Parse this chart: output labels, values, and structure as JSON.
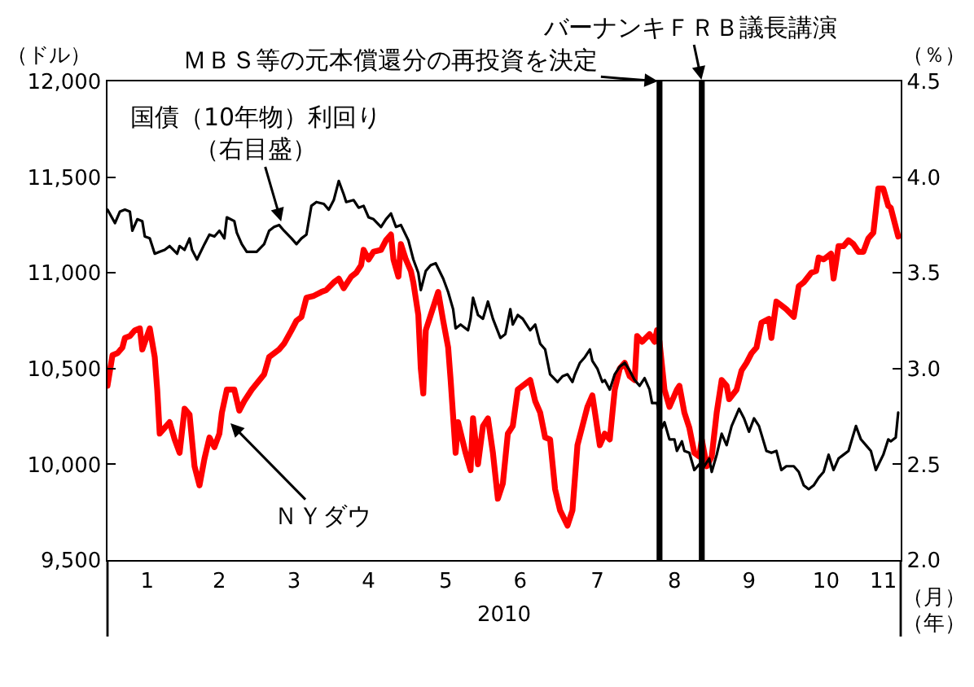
{
  "chart_data": {
    "type": "line",
    "xlabel": "2010",
    "ylabel": "（ドル）",
    "y2label": "（％）",
    "xlim": [
      "2009-12-31",
      "2010-11-15"
    ],
    "xticks": [
      {
        "value": "2010-01-16",
        "label": "1"
      },
      {
        "value": "2010-02-14",
        "label": "2"
      },
      {
        "value": "2010-03-16",
        "label": "3"
      },
      {
        "value": "2010-04-15",
        "label": "4"
      },
      {
        "value": "2010-05-16",
        "label": "5"
      },
      {
        "value": "2010-06-15",
        "label": "6"
      },
      {
        "value": "2010-07-16",
        "label": "7"
      },
      {
        "value": "2010-08-16",
        "label": "8"
      },
      {
        "value": "2010-09-15",
        "label": "9"
      },
      {
        "value": "2010-10-16",
        "label": "10"
      },
      {
        "value": "2010-11-08",
        "label": "11"
      }
    ],
    "ylim": [
      9500,
      12000
    ],
    "yticks": [
      {
        "value": 9500,
        "label": "9,500"
      },
      {
        "value": 10000,
        "label": "10,000"
      },
      {
        "value": 10500,
        "label": "10,500"
      },
      {
        "value": 11000,
        "label": "11,000"
      },
      {
        "value": 11500,
        "label": "11,500"
      },
      {
        "value": 12000,
        "label": "12,000"
      }
    ],
    "y2lim": [
      2.0,
      4.5
    ],
    "y2ticks": [
      {
        "value": 2.0,
        "label": "2.0"
      },
      {
        "value": 2.5,
        "label": "2.5"
      },
      {
        "value": 3.0,
        "label": "3.0"
      },
      {
        "value": 3.5,
        "label": "3.5"
      },
      {
        "value": 4.0,
        "label": "4.0"
      },
      {
        "value": 4.5,
        "label": "4.5"
      }
    ],
    "series": [
      {
        "color": "#ff0000",
        "x": [
          "2009-12-31",
          "2010-01-02",
          "2010-01-04",
          "2010-01-06",
          "2010-01-07",
          "2010-01-09",
          "2010-01-11",
          "2010-01-13",
          "2010-01-14",
          "2010-01-17",
          "2010-01-19",
          "2010-01-20",
          "2010-01-21",
          "2010-01-23",
          "2010-01-25",
          "2010-01-27",
          "2010-01-29",
          "2010-01-31",
          "2010-02-02",
          "2010-02-04",
          "2010-02-06",
          "2010-02-08",
          "2010-02-10",
          "2010-02-12",
          "2010-02-14",
          "2010-02-15",
          "2010-02-17",
          "2010-02-20",
          "2010-02-22",
          "2010-02-24",
          "2010-02-27",
          "2010-03-04",
          "2010-03-06",
          "2010-03-10",
          "2010-03-12",
          "2010-03-15",
          "2010-03-17",
          "2010-03-19",
          "2010-03-21",
          "2010-03-24",
          "2010-03-27",
          "2010-03-29",
          "2010-04-01",
          "2010-04-03",
          "2010-04-05",
          "2010-04-08",
          "2010-04-10",
          "2010-04-12",
          "2010-04-13",
          "2010-04-15",
          "2010-04-17",
          "2010-04-20",
          "2010-04-22",
          "2010-04-24",
          "2010-04-25",
          "2010-04-27",
          "2010-04-28",
          "2010-04-30",
          "2010-05-02",
          "2010-05-03",
          "2010-05-05",
          "2010-05-06",
          "2010-05-07",
          "2010-05-08",
          "2010-05-10",
          "2010-05-13",
          "2010-05-15",
          "2010-05-17",
          "2010-05-18",
          "2010-05-20",
          "2010-05-21",
          "2010-05-24",
          "2010-05-26",
          "2010-05-27",
          "2010-05-29",
          "2010-05-31",
          "2010-06-02",
          "2010-06-04",
          "2010-06-06",
          "2010-06-08",
          "2010-06-10",
          "2010-06-12",
          "2010-06-14",
          "2010-06-16",
          "2010-06-19",
          "2010-06-21",
          "2010-06-23",
          "2010-06-25",
          "2010-06-27",
          "2010-06-29",
          "2010-07-01",
          "2010-07-04",
          "2010-07-06",
          "2010-07-08",
          "2010-07-10",
          "2010-07-12",
          "2010-07-14",
          "2010-07-17",
          "2010-07-19",
          "2010-07-21",
          "2010-07-23",
          "2010-07-25",
          "2010-07-27",
          "2010-07-29",
          "2010-07-31",
          "2010-08-01",
          "2010-08-03",
          "2010-08-06",
          "2010-08-08",
          "2010-08-09",
          "2010-08-10",
          "2010-08-12",
          "2010-08-14",
          "2010-08-17",
          "2010-08-18",
          "2010-08-20",
          "2010-08-22",
          "2010-08-24",
          "2010-08-26",
          "2010-08-27",
          "2010-08-29",
          "2010-08-31",
          "2010-09-02",
          "2010-09-04",
          "2010-09-06",
          "2010-09-07",
          "2010-09-10",
          "2010-09-12",
          "2010-09-14",
          "2010-09-16",
          "2010-09-18",
          "2010-09-20",
          "2010-09-23",
          "2010-09-24",
          "2010-09-26",
          "2010-09-28",
          "2010-09-30",
          "2010-10-03",
          "2010-10-05",
          "2010-10-07",
          "2010-10-10",
          "2010-10-12",
          "2010-10-13",
          "2010-10-15",
          "2010-10-18",
          "2010-10-19",
          "2010-10-21",
          "2010-10-23",
          "2010-10-25",
          "2010-10-27",
          "2010-10-29",
          "2010-10-31",
          "2010-11-02",
          "2010-11-04",
          "2010-11-06",
          "2010-11-08",
          "2010-11-10",
          "2010-11-11",
          "2010-11-14"
        ],
        "values": [
          10410,
          10570,
          10580,
          10610,
          10660,
          10670,
          10700,
          10710,
          10600,
          10710,
          10560,
          10390,
          10160,
          10190,
          10220,
          10130,
          10060,
          10290,
          10260,
          9990,
          9890,
          10030,
          10140,
          10090,
          10160,
          10270,
          10390,
          10390,
          10280,
          10330,
          10390,
          10470,
          10560,
          10600,
          10630,
          10700,
          10750,
          10770,
          10870,
          10880,
          10900,
          10910,
          10950,
          10970,
          10920,
          10980,
          11000,
          11040,
          11120,
          11070,
          11110,
          11120,
          11170,
          11200,
          11070,
          10980,
          11150,
          11070,
          11010,
          10950,
          10780,
          10500,
          10370,
          10700,
          10780,
          10900,
          10750,
          10610,
          10440,
          10060,
          10220,
          10060,
          9970,
          10240,
          10000,
          10200,
          10240,
          10060,
          9820,
          9900,
          10160,
          10200,
          10390,
          10410,
          10440,
          10330,
          10270,
          10140,
          10130,
          9870,
          9760,
          9680,
          9760,
          10100,
          10200,
          10300,
          10360,
          10100,
          10160,
          10130,
          10390,
          10500,
          10530,
          10460,
          10440,
          10670,
          10640,
          10680,
          10640,
          10700,
          10640,
          10390,
          10300,
          10390,
          10410,
          10270,
          10190,
          10060,
          10040,
          10130,
          9990,
          10040,
          10270,
          10440,
          10410,
          10340,
          10390,
          10490,
          10530,
          10580,
          10610,
          10740,
          10760,
          10660,
          10850,
          10830,
          10810,
          10770,
          10930,
          10950,
          11000,
          11010,
          11080,
          11070,
          11100,
          10970,
          11140,
          11140,
          11170,
          11150,
          11110,
          11110,
          11180,
          11210,
          11440,
          11440,
          11350,
          11340,
          11190
        ]
      },
      {
        "color": "#000000",
        "axis": "y2",
        "x": [
          "2009-12-31",
          "2010-01-03",
          "2010-01-05",
          "2010-01-07",
          "2010-01-09",
          "2010-01-10",
          "2010-01-12",
          "2010-01-14",
          "2010-01-15",
          "2010-01-17",
          "2010-01-19",
          "2010-01-21",
          "2010-01-23",
          "2010-01-25",
          "2010-01-28",
          "2010-01-29",
          "2010-01-31",
          "2010-02-02",
          "2010-02-03",
          "2010-02-05",
          "2010-02-08",
          "2010-02-10",
          "2010-02-12",
          "2010-02-14",
          "2010-02-16",
          "2010-02-17",
          "2010-02-20",
          "2010-02-21",
          "2010-02-23",
          "2010-02-25",
          "2010-02-27",
          "2010-03-01",
          "2010-03-04",
          "2010-03-06",
          "2010-03-08",
          "2010-03-10",
          "2010-03-12",
          "2010-03-15",
          "2010-03-17",
          "2010-03-19",
          "2010-03-21",
          "2010-03-23",
          "2010-03-25",
          "2010-03-28",
          "2010-03-30",
          "2010-04-01",
          "2010-04-03",
          "2010-04-05",
          "2010-04-06",
          "2010-04-09",
          "2010-04-11",
          "2010-04-13",
          "2010-04-15",
          "2010-04-17",
          "2010-04-20",
          "2010-04-22",
          "2010-04-24",
          "2010-04-26",
          "2010-04-28",
          "2010-05-01",
          "2010-05-03",
          "2010-05-05",
          "2010-05-06",
          "2010-05-08",
          "2010-05-10",
          "2010-05-12",
          "2010-05-15",
          "2010-05-17",
          "2010-05-19",
          "2010-05-20",
          "2010-05-22",
          "2010-05-25",
          "2010-05-26",
          "2010-05-27",
          "2010-05-29",
          "2010-05-31",
          "2010-06-02",
          "2010-06-04",
          "2010-06-07",
          "2010-06-09",
          "2010-06-11",
          "2010-06-12",
          "2010-06-14",
          "2010-06-16",
          "2010-06-19",
          "2010-06-21",
          "2010-06-23",
          "2010-06-25",
          "2010-06-27",
          "2010-06-30",
          "2010-07-02",
          "2010-07-04",
          "2010-07-06",
          "2010-07-07",
          "2010-07-09",
          "2010-07-11",
          "2010-07-13",
          "2010-07-14",
          "2010-07-16",
          "2010-07-18",
          "2010-07-19",
          "2010-07-21",
          "2010-07-23",
          "2010-07-25",
          "2010-07-27",
          "2010-07-29",
          "2010-07-31",
          "2010-08-02",
          "2010-08-04",
          "2010-08-06",
          "2010-08-07",
          "2010-08-09",
          "2010-08-11",
          "2010-08-12",
          "2010-08-14",
          "2010-08-16",
          "2010-08-17",
          "2010-08-19",
          "2010-08-20",
          "2010-08-22",
          "2010-08-24",
          "2010-08-26",
          "2010-08-27",
          "2010-08-30",
          "2010-08-31",
          "2010-09-02",
          "2010-09-04",
          "2010-09-06",
          "2010-09-08",
          "2010-09-11",
          "2010-09-13",
          "2010-09-15",
          "2010-09-17",
          "2010-09-19",
          "2010-09-22",
          "2010-09-24",
          "2010-09-26",
          "2010-09-28",
          "2010-09-30",
          "2010-10-03",
          "2010-10-05",
          "2010-10-07",
          "2010-10-09",
          "2010-10-11",
          "2010-10-13",
          "2010-10-15",
          "2010-10-17",
          "2010-10-19",
          "2010-10-21",
          "2010-10-23",
          "2010-10-25",
          "2010-10-28",
          "2010-10-30",
          "2010-11-01",
          "2010-11-03",
          "2010-11-05",
          "2010-11-08",
          "2010-11-10",
          "2010-11-11",
          "2010-11-13",
          "2010-11-14"
        ],
        "values": [
          3.83,
          3.76,
          3.82,
          3.83,
          3.82,
          3.72,
          3.78,
          3.77,
          3.69,
          3.68,
          3.6,
          3.61,
          3.62,
          3.64,
          3.6,
          3.64,
          3.62,
          3.68,
          3.62,
          3.57,
          3.65,
          3.7,
          3.69,
          3.72,
          3.68,
          3.79,
          3.77,
          3.71,
          3.65,
          3.61,
          3.61,
          3.61,
          3.65,
          3.72,
          3.74,
          3.75,
          3.72,
          3.68,
          3.65,
          3.68,
          3.7,
          3.85,
          3.87,
          3.86,
          3.83,
          3.88,
          3.98,
          3.91,
          3.87,
          3.88,
          3.84,
          3.85,
          3.79,
          3.78,
          3.74,
          3.78,
          3.81,
          3.74,
          3.75,
          3.67,
          3.57,
          3.5,
          3.41,
          3.51,
          3.54,
          3.55,
          3.47,
          3.4,
          3.31,
          3.21,
          3.23,
          3.2,
          3.26,
          3.37,
          3.28,
          3.26,
          3.35,
          3.26,
          3.16,
          3.18,
          3.31,
          3.23,
          3.28,
          3.26,
          3.2,
          3.23,
          3.13,
          3.1,
          2.97,
          2.93,
          2.96,
          2.97,
          2.93,
          2.97,
          3.03,
          3.06,
          3.1,
          3.04,
          3.0,
          2.93,
          2.94,
          2.89,
          2.97,
          3.01,
          3.03,
          2.99,
          2.94,
          2.91,
          2.95,
          2.89,
          2.82,
          2.82,
          2.69,
          2.72,
          2.63,
          2.63,
          2.57,
          2.62,
          2.57,
          2.56,
          2.47,
          2.5,
          2.47,
          2.53,
          2.46,
          2.55,
          2.66,
          2.6,
          2.7,
          2.79,
          2.74,
          2.67,
          2.74,
          2.7,
          2.57,
          2.56,
          2.57,
          2.47,
          2.49,
          2.49,
          2.46,
          2.39,
          2.37,
          2.39,
          2.43,
          2.46,
          2.55,
          2.47,
          2.53,
          2.55,
          2.57,
          2.7,
          2.63,
          2.6,
          2.57,
          2.47,
          2.55,
          2.63,
          2.62,
          2.64,
          2.77
        ]
      }
    ],
    "ref_lines": [
      {
        "axis": "x",
        "value": "2010-08-10",
        "label": "ＭＢＳ等の元本償還分の再投資を決定",
        "color": "#000000"
      },
      {
        "axis": "x",
        "value": "2010-08-27",
        "label": "バーナンキＦＲＢ議長講演",
        "color": "#000000"
      }
    ],
    "annotations": [
      {
        "text": "国債（10年物）利回り（右目盛）",
        "x": "2010-03-11",
        "y": 11260
      },
      {
        "text": "ＮＹダウ",
        "x": "2010-02-18",
        "y": 10220
      },
      "（月）",
      "（年）"
    ]
  }
}
